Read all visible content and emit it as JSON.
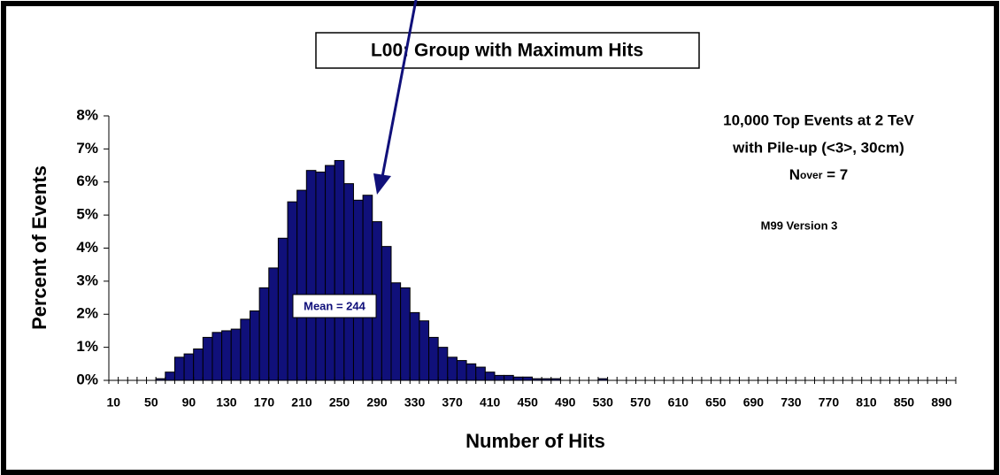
{
  "chart_data": {
    "type": "bar",
    "title": "L00: Group with Maximum Hits",
    "x_label": "Number of Hits",
    "y_label": "Percent of Events",
    "annotations": {
      "info_lines": [
        "10,000 Top Events at 2 TeV",
        "with Pile-up (<3>, 30cm)"
      ],
      "nover": {
        "main": "N",
        "sub": "over",
        "rest": " = 7"
      },
      "version": "M99 Version 3",
      "mean": "Mean = 244"
    },
    "color": "#10107a",
    "categories": [
      "10",
      null,
      null,
      null,
      "50",
      null,
      null,
      null,
      "90",
      null,
      null,
      null,
      "130",
      null,
      null,
      null,
      "170",
      null,
      null,
      null,
      "210",
      null,
      null,
      null,
      "250",
      null,
      null,
      null,
      "290",
      null,
      null,
      null,
      "330",
      null,
      null,
      null,
      "370",
      null,
      null,
      null,
      "410",
      null,
      null,
      null,
      "450",
      null,
      null,
      null,
      "490",
      null,
      null,
      null,
      "530",
      null,
      null,
      null,
      "570",
      null,
      null,
      null,
      "610",
      null,
      null,
      null,
      "650",
      null,
      null,
      null,
      "690",
      null,
      null,
      null,
      "730",
      null,
      null,
      null,
      "770",
      null,
      null,
      null,
      "810",
      null,
      null,
      null,
      "850",
      null,
      null,
      null,
      "890",
      null
    ],
    "values": [
      0,
      0,
      0,
      0,
      0,
      0.05,
      0.25,
      0.7,
      0.8,
      0.95,
      1.3,
      1.45,
      1.5,
      1.55,
      1.85,
      2.1,
      2.8,
      3.4,
      4.3,
      5.4,
      5.75,
      6.35,
      6.3,
      6.5,
      6.65,
      5.95,
      5.45,
      5.6,
      4.8,
      4.05,
      2.95,
      2.8,
      2.05,
      1.8,
      1.3,
      1.0,
      0.7,
      0.6,
      0.5,
      0.4,
      0.25,
      0.15,
      0.15,
      0.1,
      0.1,
      0.05,
      0.05,
      0.05,
      0,
      0,
      0,
      0,
      0.05,
      0,
      0,
      0,
      0,
      0,
      0,
      0,
      0,
      0,
      0,
      0,
      0,
      0,
      0,
      0,
      0,
      0,
      0,
      0,
      0,
      0,
      0,
      0,
      0,
      0,
      0,
      0,
      0,
      0,
      0,
      0,
      0,
      0,
      0,
      0,
      0,
      0
    ],
    "ylim": [
      0,
      8
    ],
    "yticks": [
      {
        "value": 0,
        "label": "0%"
      },
      {
        "value": 1,
        "label": "1%"
      },
      {
        "value": 2,
        "label": "2%"
      },
      {
        "value": 3,
        "label": "3%"
      },
      {
        "value": 4,
        "label": "4%"
      },
      {
        "value": 5,
        "label": "5%"
      },
      {
        "value": 6,
        "label": "6%"
      },
      {
        "value": 7,
        "label": "7%"
      },
      {
        "value": 8,
        "label": "8%"
      }
    ]
  }
}
